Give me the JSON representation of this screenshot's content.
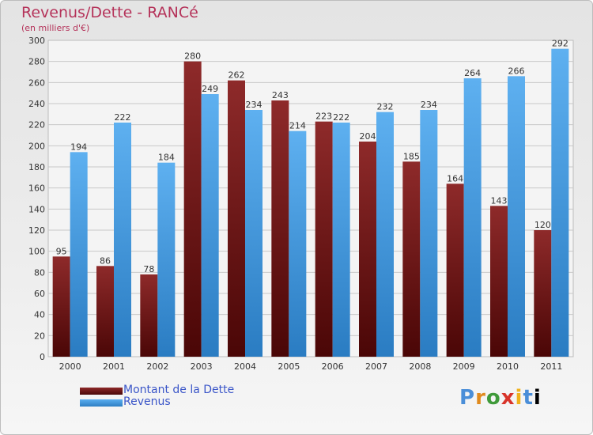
{
  "chart_data": {
    "type": "bar",
    "title": "Revenus/Dette - RANCé",
    "subtitle": "(en milliers d'€)",
    "categories": [
      "2000",
      "2001",
      "2002",
      "2003",
      "2004",
      "2005",
      "2006",
      "2007",
      "2008",
      "2009",
      "2010",
      "2011"
    ],
    "series": [
      {
        "name": "Montant de la Dette",
        "color": "#7a1c1c",
        "values": [
          95,
          86,
          78,
          280,
          262,
          243,
          223,
          204,
          185,
          164,
          143,
          120
        ]
      },
      {
        "name": "Revenus",
        "color": "#3d94dc",
        "values": [
          194,
          222,
          184,
          249,
          234,
          214,
          222,
          232,
          234,
          264,
          266,
          292
        ]
      }
    ],
    "ylim": [
      0,
      300
    ],
    "yticks": [
      0,
      20,
      40,
      60,
      80,
      100,
      120,
      140,
      160,
      180,
      200,
      220,
      240,
      260,
      280,
      300
    ],
    "grid": true,
    "legend_position": "bottom-left"
  },
  "logo": {
    "letters": [
      "P",
      "r",
      "o",
      "x",
      "i",
      "t",
      "i"
    ]
  }
}
